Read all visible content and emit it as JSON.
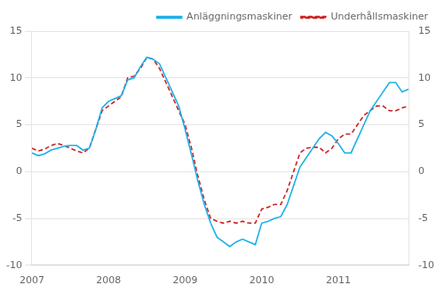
{
  "chart_data": {
    "type": "line",
    "x": [
      2007.0,
      2007.0833333333333,
      2007.1666666666667,
      2007.25,
      2007.3333333333333,
      2007.4166666666667,
      2007.5,
      2007.5833333333333,
      2007.6666666666667,
      2007.75,
      2007.8333333333333,
      2007.9166666666667,
      2008.0,
      2008.0833333333333,
      2008.1666666666667,
      2008.25,
      2008.3333333333333,
      2008.4166666666667,
      2008.5,
      2008.5833333333333,
      2008.6666666666667,
      2008.75,
      2008.8333333333333,
      2008.9166666666667,
      2009.0,
      2009.0833333333333,
      2009.1666666666667,
      2009.25,
      2009.3333333333333,
      2009.4166666666667,
      2009.5,
      2009.5833333333333,
      2009.6666666666667,
      2009.75,
      2009.8333333333333,
      2009.9166666666667,
      2010.0,
      2010.0833333333333,
      2010.1666666666667,
      2010.25,
      2010.3333333333333,
      2010.4166666666667,
      2010.5,
      2010.5833333333333,
      2010.6666666666667,
      2010.75,
      2010.8333333333333,
      2010.9166666666667,
      2011.0,
      2011.0833333333333,
      2011.1666666666667,
      2011.25,
      2011.3333333333333,
      2011.4166666666667,
      2011.5,
      2011.5833333333333,
      2011.6666666666667,
      2011.75,
      2011.8333333333333,
      2011.9166666666667
    ],
    "series": [
      {
        "name": "Anläggningsmaskiner",
        "color": "#1ab0e8",
        "line_style": "solid",
        "values": [
          2.0,
          1.7,
          1.9,
          2.3,
          2.5,
          2.7,
          2.8,
          2.8,
          2.3,
          2.5,
          4.5,
          6.8,
          7.5,
          7.8,
          8.1,
          9.8,
          10.0,
          11.2,
          12.2,
          12.0,
          11.5,
          10.0,
          8.5,
          7.0,
          4.5,
          1.8,
          -1.0,
          -3.5,
          -5.5,
          -7.0,
          -7.5,
          -8.0,
          -7.5,
          -7.2,
          -7.5,
          -7.8,
          -5.5,
          -5.3,
          -5.0,
          -4.8,
          -3.5,
          -1.5,
          0.5,
          1.5,
          2.5,
          3.5,
          4.2,
          3.8,
          3.0,
          2.0,
          2.0,
          3.5,
          5.0,
          6.5,
          7.5,
          8.5,
          9.5,
          9.5,
          8.5,
          8.8
        ]
      },
      {
        "name": "Underhållsmaskiner",
        "color": "#cc2222",
        "line_style": "dashed",
        "values": [
          2.5,
          2.2,
          2.4,
          2.8,
          3.0,
          2.8,
          2.5,
          2.2,
          2.0,
          2.5,
          4.5,
          6.5,
          7.0,
          7.5,
          8.0,
          10.0,
          10.2,
          11.0,
          12.2,
          12.0,
          11.0,
          9.5,
          8.0,
          6.5,
          5.0,
          2.5,
          -0.5,
          -3.0,
          -5.0,
          -5.3,
          -5.5,
          -5.3,
          -5.5,
          -5.3,
          -5.5,
          -5.5,
          -4.0,
          -3.8,
          -3.5,
          -3.5,
          -2.0,
          0.0,
          2.0,
          2.5,
          2.6,
          2.6,
          2.0,
          2.5,
          3.5,
          4.0,
          4.0,
          5.0,
          6.0,
          6.5,
          7.0,
          7.0,
          6.5,
          6.5,
          6.8,
          7.0
        ]
      }
    ],
    "xlim": [
      2007.0,
      2011.9167
    ],
    "xticks": [
      2007,
      2008,
      2009,
      2010,
      2011
    ],
    "ylim": [
      -10,
      15
    ],
    "yticks": [
      -10,
      -5,
      0,
      5,
      10,
      15
    ],
    "y2lim": [
      -10,
      15
    ],
    "y2ticks": [
      -10,
      -5,
      0,
      5,
      10,
      15
    ],
    "grid": "y",
    "legend": "upper right"
  }
}
